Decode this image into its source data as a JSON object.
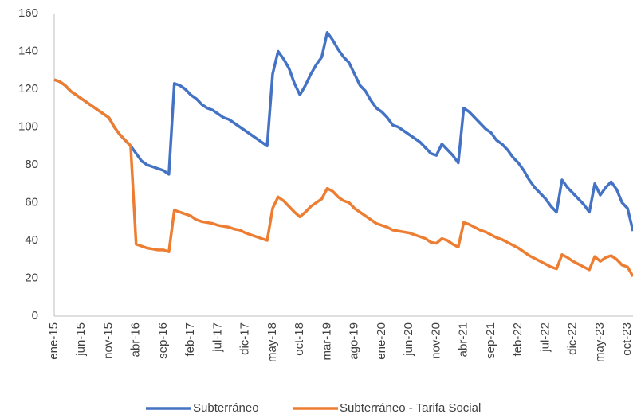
{
  "chart_data": {
    "type": "line",
    "categories": [
      "ene-15",
      null,
      null,
      null,
      null,
      "jun-15",
      null,
      null,
      null,
      null,
      "nov-15",
      null,
      null,
      null,
      null,
      "abr-16",
      null,
      null,
      null,
      null,
      "sep-16",
      null,
      null,
      null,
      null,
      "feb-17",
      null,
      null,
      null,
      null,
      "jul-17",
      null,
      null,
      null,
      null,
      "dic-17",
      null,
      null,
      null,
      null,
      "may-18",
      null,
      null,
      null,
      null,
      "oct-18",
      null,
      null,
      null,
      null,
      "mar-19",
      null,
      null,
      null,
      null,
      "ago-19",
      null,
      null,
      null,
      null,
      "ene-20",
      null,
      null,
      null,
      null,
      "jun-20",
      null,
      null,
      null,
      null,
      "nov-20",
      null,
      null,
      null,
      null,
      "abr-21",
      null,
      null,
      null,
      null,
      "sep-21",
      null,
      null,
      null,
      null,
      "feb-22",
      null,
      null,
      null,
      null,
      "jul-22",
      null,
      null,
      null,
      null,
      "dic-22",
      null,
      null,
      null,
      null,
      "may-23",
      null,
      null,
      null,
      null,
      "oct-23",
      null
    ],
    "series": [
      {
        "name": "Subterráneo",
        "color": "#4472c4",
        "values": [
          125,
          124,
          122,
          119,
          117,
          115,
          113,
          111,
          109,
          107,
          105,
          100,
          96,
          93,
          90,
          86,
          82,
          80,
          79,
          78,
          77,
          75,
          123,
          122,
          120,
          117,
          115,
          112,
          110,
          109,
          107,
          105,
          104,
          102,
          100,
          98,
          96,
          94,
          92,
          90,
          128,
          140,
          136,
          131,
          123,
          117,
          122,
          128,
          133,
          137,
          150,
          146,
          141,
          137,
          134,
          128,
          122,
          119,
          114,
          110,
          108,
          105,
          101,
          100,
          98,
          96,
          94,
          92,
          89,
          86,
          85,
          91,
          88,
          85,
          81,
          110,
          108,
          105,
          102,
          99,
          97,
          93,
          91,
          88,
          84,
          81,
          77,
          72,
          68,
          65,
          62,
          58,
          55,
          72,
          68,
          65,
          62,
          59,
          55,
          70,
          64,
          68,
          71,
          67,
          60,
          57,
          45
        ]
      },
      {
        "name": "Subterráneo - Tarifa Social",
        "color": "#ed7d31",
        "values": [
          125,
          124,
          122,
          119,
          117,
          115,
          113,
          111,
          109,
          107,
          105,
          100,
          96,
          93,
          90,
          38,
          37,
          36,
          35.5,
          35,
          35,
          34,
          56,
          55,
          54,
          53,
          51,
          50,
          49.5,
          49,
          48,
          47.5,
          47,
          46,
          45.5,
          44,
          43,
          42,
          41,
          40,
          57,
          63,
          61,
          58,
          55,
          52.5,
          55,
          58,
          60,
          62,
          67.5,
          66,
          63,
          61,
          60,
          57,
          55,
          53,
          51,
          49,
          48,
          47,
          45.5,
          45,
          44.5,
          44,
          43,
          42,
          41,
          39,
          38.5,
          41,
          40,
          38,
          36.5,
          49.5,
          48.5,
          47,
          45.5,
          44.5,
          43,
          41.5,
          40.5,
          39,
          37.5,
          36,
          34,
          32,
          30.5,
          29,
          27.5,
          26,
          25,
          32.5,
          31,
          29,
          27.5,
          26,
          24.5,
          31.5,
          29,
          31,
          32,
          30,
          27,
          26,
          21
        ]
      }
    ],
    "ylim": [
      0,
      160
    ],
    "yticks": [
      0,
      20,
      40,
      60,
      80,
      100,
      120,
      140,
      160
    ],
    "legend": "bottom"
  }
}
